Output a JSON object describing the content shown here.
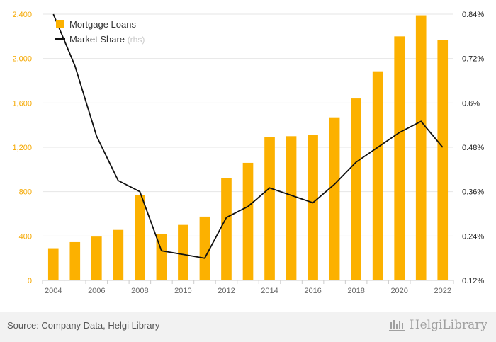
{
  "chart_data": {
    "type": "bar+line",
    "categories": [
      "2004",
      "2005",
      "2006",
      "2007",
      "2008",
      "2009",
      "2010",
      "2011",
      "2012",
      "2013",
      "2014",
      "2015",
      "2016",
      "2017",
      "2018",
      "2019",
      "2020",
      "2021",
      "2022"
    ],
    "x_tick_labels": [
      "2004",
      "2006",
      "2008",
      "2010",
      "2012",
      "2014",
      "2016",
      "2018",
      "2020",
      "2022"
    ],
    "series": [
      {
        "name": "Mortgage Loans",
        "type": "bar",
        "axis": "left",
        "values": [
          290,
          345,
          395,
          455,
          770,
          420,
          500,
          575,
          920,
          1060,
          1290,
          1300,
          1310,
          1470,
          1640,
          1885,
          2200,
          2390,
          2170
        ]
      },
      {
        "name": "Market Share",
        "type": "line",
        "axis": "right",
        "values": [
          0.84,
          0.7,
          0.51,
          0.39,
          0.36,
          0.2,
          0.19,
          0.18,
          0.29,
          0.32,
          0.37,
          0.35,
          0.33,
          0.38,
          0.44,
          0.48,
          0.52,
          0.55,
          0.48
        ]
      }
    ],
    "y_left": {
      "min": 0,
      "max": 2400,
      "ticks": [
        0,
        400,
        800,
        1200,
        1600,
        2000,
        2400
      ],
      "tick_labels": [
        "0",
        "400",
        "800",
        "1,200",
        "1,600",
        "2,000",
        "2,400"
      ]
    },
    "y_right": {
      "min": 0.12,
      "max": 0.84,
      "ticks": [
        0.12,
        0.24,
        0.36,
        0.48,
        0.6,
        0.72,
        0.84
      ],
      "tick_labels": [
        "0.12%",
        "0.24%",
        "0.36%",
        "0.48%",
        "0.6%",
        "0.72%",
        "0.84%"
      ]
    },
    "legend": {
      "position": "top-left",
      "items": [
        {
          "label": "Mortgage Loans",
          "suffix": ""
        },
        {
          "label": "Market Share",
          "suffix": "(rhs)"
        }
      ]
    },
    "grid": true
  },
  "colors": {
    "bar": "#fcb100",
    "line": "#111111",
    "left_ticks": "#f5a800",
    "grid": "#e6e6e6"
  },
  "footer": {
    "source": "Source: Company Data, Helgi Library",
    "brand": "HelgiLibrary",
    "brand_icon": "library-columns-icon"
  }
}
